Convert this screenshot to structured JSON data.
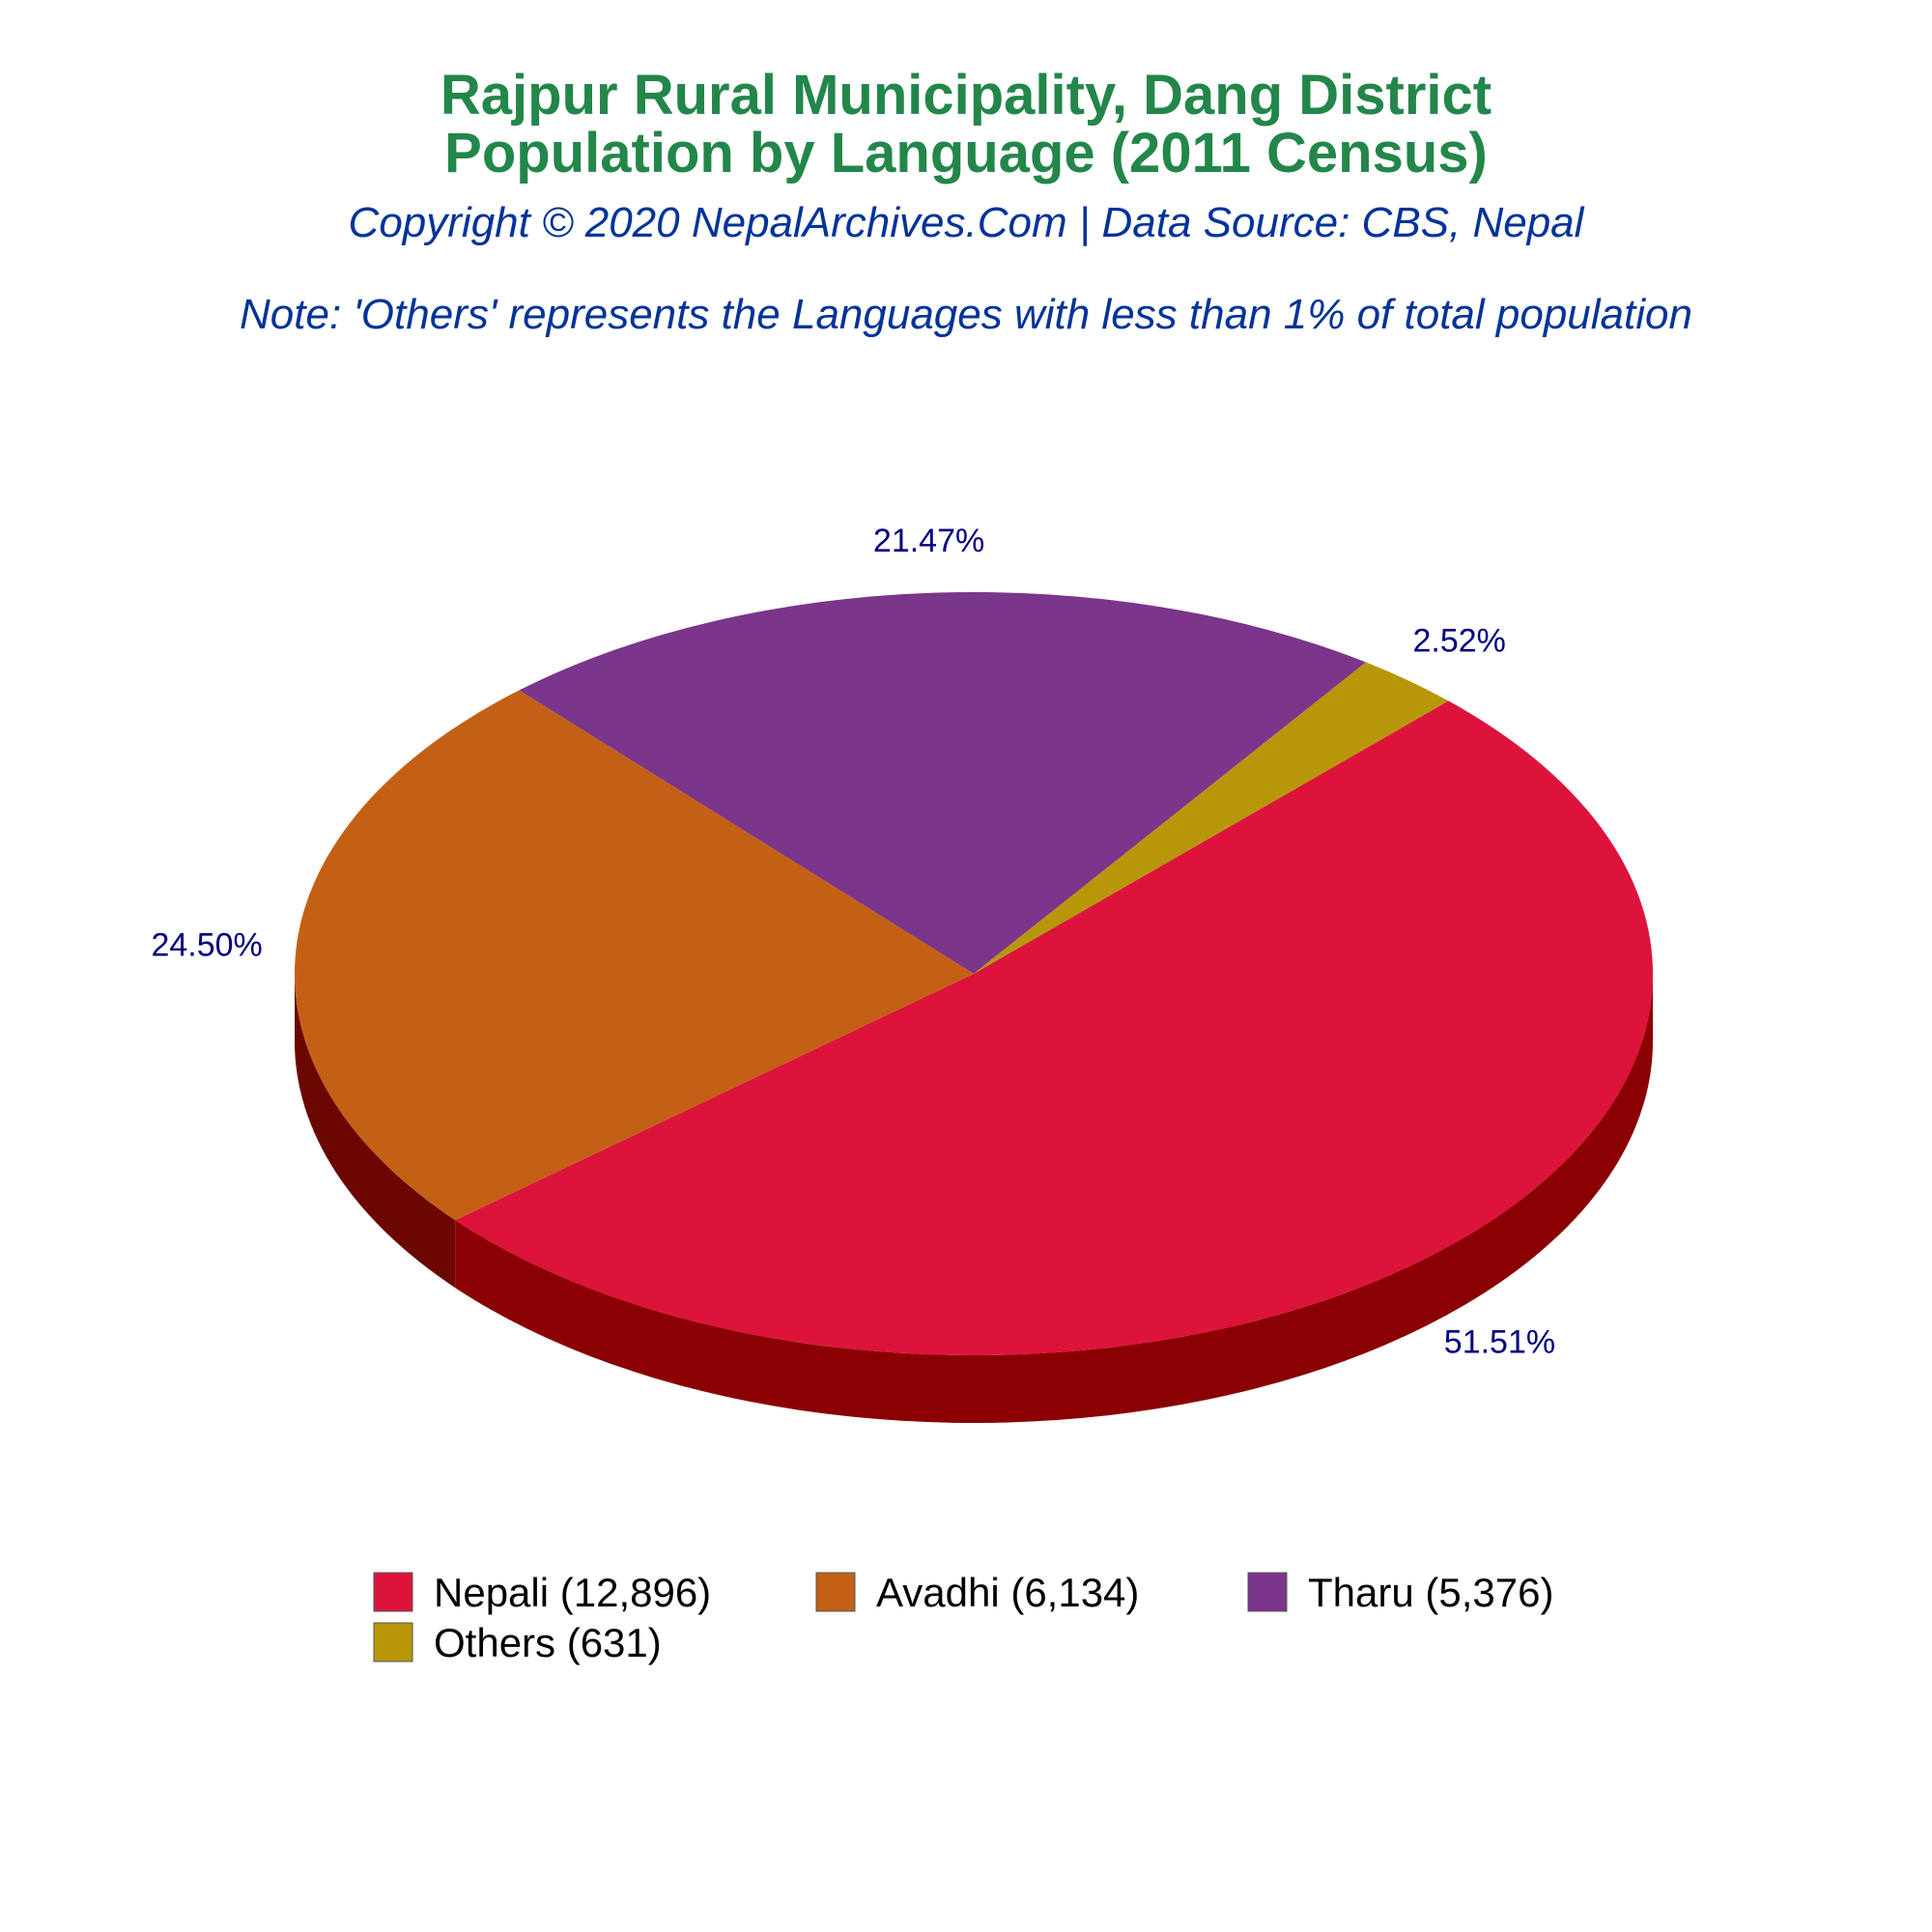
{
  "chart_data": {
    "type": "pie",
    "title": "Rajpur Rural Municipality, Dang District",
    "subtitle": "Population by Language (2011 Census)",
    "copyright": "Copyright © 2020 NepalArchives.Com | Data Source: CBS, Nepal",
    "note": "Note: 'Others' represents the Languages with less than 1% of total population",
    "slices": [
      {
        "name": "Nepali",
        "value": 12896,
        "percent_label": "51.51%",
        "legend_label": "Nepali (12,896)",
        "color": "#DC143C",
        "side_color": "#8B0000"
      },
      {
        "name": "Avadhi",
        "value": 6134,
        "percent_label": "24.50%",
        "legend_label": "Avadhi (6,134)",
        "color": "#C46015",
        "side_color": "#6B0600"
      },
      {
        "name": "Tharu",
        "value": 5376,
        "percent_label": "21.47%",
        "legend_label": "Tharu (5,376)",
        "color": "#7A368A",
        "side_color": "#1E0030"
      },
      {
        "name": "Others",
        "value": 631,
        "percent_label": "2.52%",
        "legend_label": "Others (631)",
        "color": "#B8960A",
        "side_color": "#6B5500"
      }
    ],
    "legend_position": "bottom"
  },
  "colors": {
    "title": "#23864A",
    "subtitle": "#003399",
    "labels": "#00007F"
  }
}
